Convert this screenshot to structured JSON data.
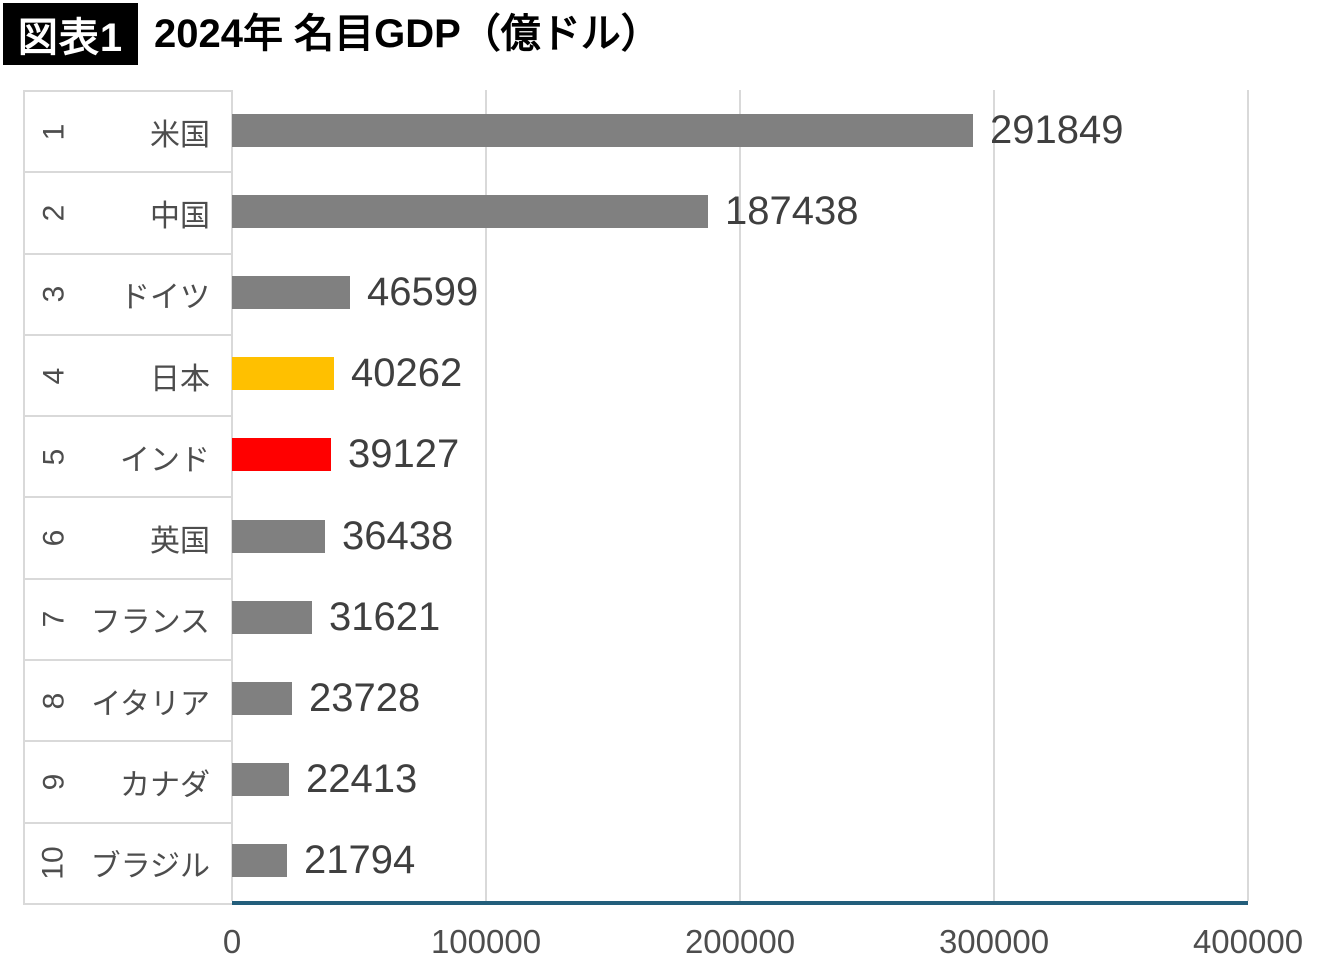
{
  "title": {
    "badge": "図表1",
    "text": "2024年 名目GDP（億ドル）"
  },
  "chart_data": {
    "type": "bar",
    "orientation": "horizontal",
    "title": "2024年 名目GDP（億ドル）",
    "ranks": [
      "1",
      "2",
      "3",
      "4",
      "5",
      "6",
      "7",
      "8",
      "9",
      "10"
    ],
    "categories": [
      "米国",
      "中国",
      "ドイツ",
      "日本",
      "インド",
      "英国",
      "フランス",
      "イタリア",
      "カナダ",
      "ブラジル"
    ],
    "values": [
      291849,
      187438,
      46599,
      40262,
      39127,
      36438,
      31621,
      23728,
      22413,
      21794
    ],
    "bar_colors": [
      "#808080",
      "#808080",
      "#808080",
      "#FFC000",
      "#FF0000",
      "#808080",
      "#808080",
      "#808080",
      "#808080",
      "#808080"
    ],
    "value_labels": [
      "291849",
      "187438",
      "46599",
      "40262",
      "39127",
      "36438",
      "31621",
      "23728",
      "22413",
      "21794"
    ],
    "xlim": [
      0,
      400000
    ],
    "x_ticks": [
      0,
      100000,
      200000,
      300000,
      400000
    ],
    "x_tick_labels": [
      "0",
      "100000",
      "200000",
      "300000",
      "400000"
    ],
    "grid": true,
    "legend": "none",
    "value_labels_shown": true
  },
  "colors": {
    "default_bar": "#808080",
    "highlight_japan": "#FFC000",
    "highlight_india": "#FF0000",
    "axis_line": "#235e7b",
    "gridline": "#d9d9d9",
    "value_text": "#3f3f3f",
    "category_text": "#4d4d4d",
    "title_badge_bg": "#000000",
    "title_badge_fg": "#ffffff"
  }
}
